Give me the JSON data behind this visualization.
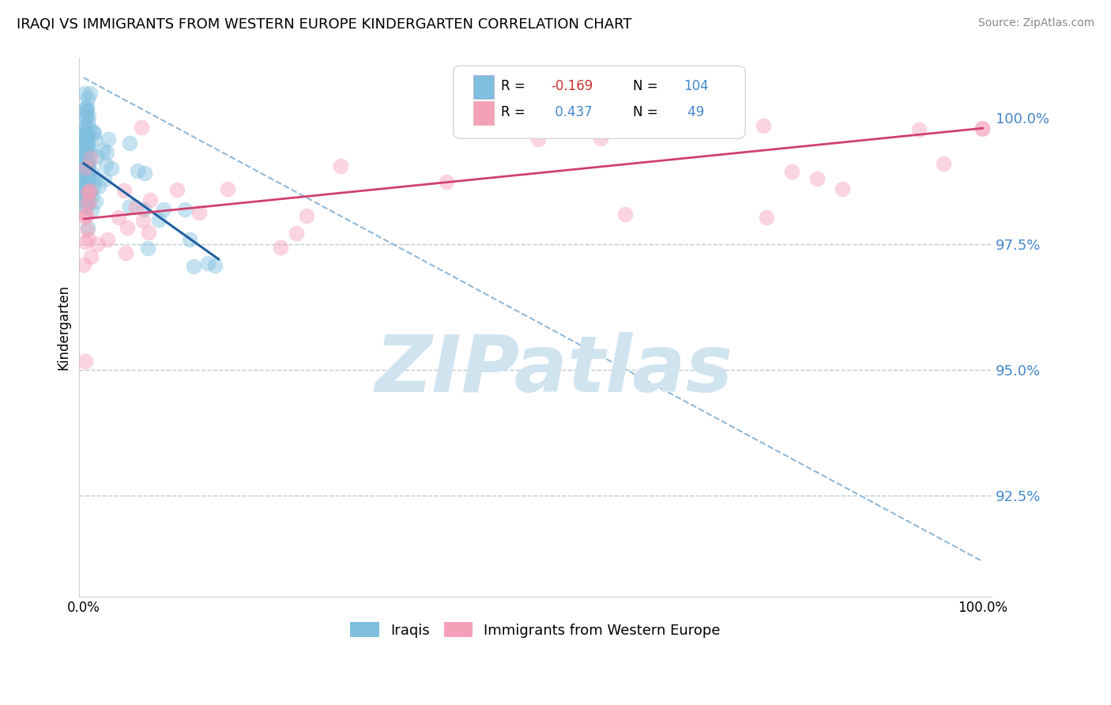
{
  "title": "IRAQI VS IMMIGRANTS FROM WESTERN EUROPE KINDERGARTEN CORRELATION CHART",
  "source": "Source: ZipAtlas.com",
  "ylabel": "Kindergarten",
  "legend_label1": "Iraqis",
  "legend_label2": "Immigrants from Western Europe",
  "R1": -0.169,
  "N1": 104,
  "R2": 0.437,
  "N2": 49,
  "color_blue": "#7fbfdf",
  "color_pink": "#f4a0b8",
  "color_blue_line": "#2060a0",
  "color_pink_line": "#d04070",
  "color_dashed": "#90b8d8",
  "watermark_color": "#d0e4f0",
  "ytick_color": "#4488cc",
  "ylim_min": 90.5,
  "ylim_max": 101.2,
  "xlim_min": -0.5,
  "xlim_max": 101.0,
  "blue_trend_x0": 0.0,
  "blue_trend_y0": 99.1,
  "blue_trend_x1": 15.0,
  "blue_trend_y1": 97.2,
  "pink_trend_x0": 0.0,
  "pink_trend_y0": 98.0,
  "pink_trend_x1": 100.0,
  "pink_trend_y1": 99.8,
  "dash_x0": 0.0,
  "dash_y0": 100.8,
  "dash_x1": 100.0,
  "dash_y1": 91.2,
  "hgrid_vals": [
    97.5,
    95.0,
    92.5
  ],
  "ytick_vals": [
    92.5,
    95.0,
    97.5,
    100.0
  ],
  "ytick_labels": [
    "92.5%",
    "95.0%",
    "97.5%",
    "100.0%"
  ]
}
